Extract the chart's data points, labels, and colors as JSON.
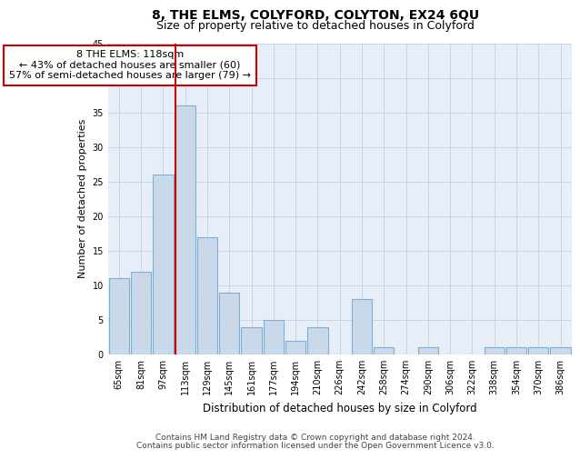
{
  "title": "8, THE ELMS, COLYFORD, COLYTON, EX24 6QU",
  "subtitle": "Size of property relative to detached houses in Colyford",
  "xlabel": "Distribution of detached houses by size in Colyford",
  "ylabel": "Number of detached properties",
  "bins": [
    "65sqm",
    "81sqm",
    "97sqm",
    "113sqm",
    "129sqm",
    "145sqm",
    "161sqm",
    "177sqm",
    "194sqm",
    "210sqm",
    "226sqm",
    "242sqm",
    "258sqm",
    "274sqm",
    "290sqm",
    "306sqm",
    "322sqm",
    "338sqm",
    "354sqm",
    "370sqm",
    "386sqm"
  ],
  "values": [
    11,
    12,
    26,
    36,
    17,
    9,
    4,
    5,
    2,
    4,
    0,
    8,
    1,
    0,
    1,
    0,
    0,
    1,
    1,
    1,
    1
  ],
  "bar_color": "#c9d9ea",
  "bar_edgecolor": "#7bafd4",
  "property_bin_index": 3,
  "red_line_color": "#cc0000",
  "annotation_text": "8 THE ELMS: 118sqm\n← 43% of detached houses are smaller (60)\n57% of semi-detached houses are larger (79) →",
  "annotation_box_edgecolor": "#cc0000",
  "annotation_box_facecolor": "#ffffff",
  "ylim": [
    0,
    45
  ],
  "yticks": [
    0,
    5,
    10,
    15,
    20,
    25,
    30,
    35,
    40,
    45
  ],
  "footer_line1": "Contains HM Land Registry data © Crown copyright and database right 2024.",
  "footer_line2": "Contains public sector information licensed under the Open Government Licence v3.0.",
  "bg_color": "#ffffff",
  "plot_bg_color": "#e8eef8",
  "grid_color": "#c8d4e8",
  "title_fontsize": 10,
  "subtitle_fontsize": 9,
  "tick_fontsize": 7,
  "ylabel_fontsize": 8,
  "xlabel_fontsize": 8.5,
  "annotation_fontsize": 8,
  "footer_fontsize": 6.5
}
